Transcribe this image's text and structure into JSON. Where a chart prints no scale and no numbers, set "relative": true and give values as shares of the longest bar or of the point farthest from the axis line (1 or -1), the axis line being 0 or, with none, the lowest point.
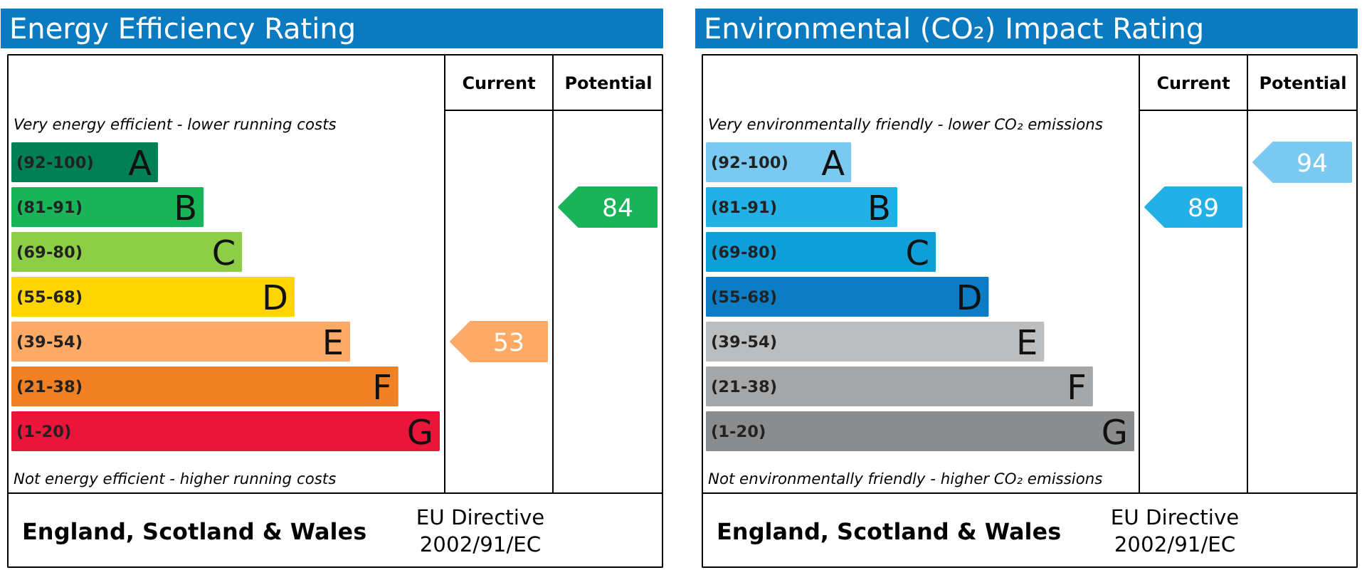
{
  "chart_data": [
    {
      "type": "bar",
      "orientation": "horizontal",
      "relative": true,
      "title": "Energy Efficiency Rating",
      "categories": [
        "A",
        "B",
        "C",
        "D",
        "E",
        "F",
        "G"
      ],
      "values": [
        0.34,
        0.447,
        0.537,
        0.66,
        0.79,
        0.903,
        1
      ],
      "colors": [
        "#008054",
        "#19b459",
        "#8dce46",
        "#ffd500",
        "#fcaa65",
        "#ef8023",
        "#e9153b"
      ],
      "annotations": [
        "Very energy efficient - lower running costs",
        "Not energy efficient - higher running costs",
        "Current",
        "Potential",
        "England, Scotland & Wales",
        "EU Directive\n2002/91/EC",
        "(92-100)",
        "(81-91)",
        "(69-80)",
        "(55-68)",
        "(39-54)",
        "(21-38)",
        "(1-20)",
        "53",
        "84"
      ]
    },
    {
      "type": "bar",
      "orientation": "horizontal",
      "relative": true,
      "title": "Environmental (CO₂) Impact Rating",
      "categories": [
        "A",
        "B",
        "C",
        "D",
        "E",
        "F",
        "G"
      ],
      "values": [
        0.337,
        0.445,
        0.535,
        0.659,
        0.789,
        0.903,
        1
      ],
      "colors": [
        "#7ac9f0",
        "#22b0e6",
        "#0e9fd8",
        "#0c7cc4",
        "#bbbdbf",
        "#a5a7a9",
        "#8a8c8e"
      ],
      "annotations": [
        "Very environmentally friendly - lower CO₂ emissions",
        "Not environmentally friendly - higher CO₂ emissions",
        "Current",
        "Potential",
        "England, Scotland & Wales",
        "EU Directive\n2002/91/EC",
        "(92-100)",
        "(81-91)",
        "(69-80)",
        "(55-68)",
        "(39-54)",
        "(21-38)",
        "(1-20)",
        "89",
        "94"
      ]
    }
  ]
}
